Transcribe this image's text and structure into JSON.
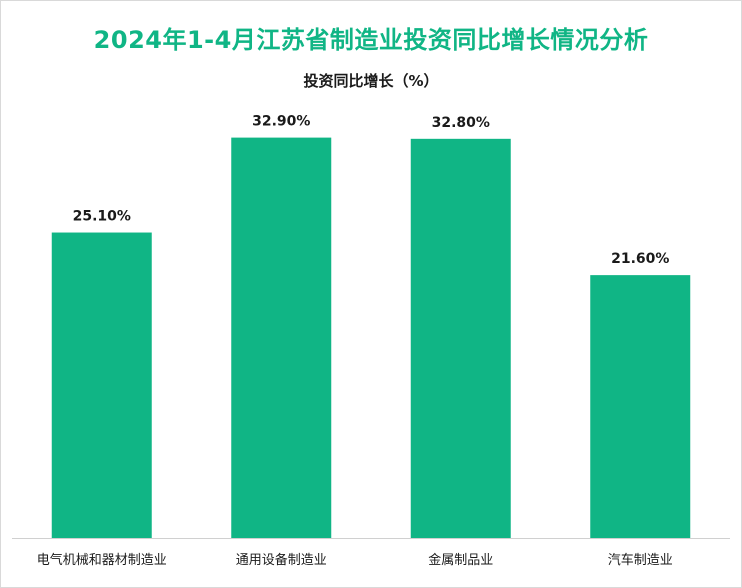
{
  "chart_data": {
    "type": "bar",
    "title": "2024年1-4月江苏省制造业投资同比增长情况分析",
    "series_title": "投资同比增长（%）",
    "categories": [
      "电气机械和器材制造业",
      "通用设备制造业",
      "金属制品业",
      "汽车制造业"
    ],
    "series": [
      {
        "name": "投资同比增长（%）",
        "values": [
          25.1,
          32.9,
          32.8,
          21.6
        ],
        "labels": [
          "25.10%",
          "32.90%",
          "32.80%",
          "21.60%"
        ]
      }
    ],
    "ylim": [
      0,
      35
    ],
    "grid": false,
    "legend": "none",
    "bar_color": "#10b585",
    "title_color": "#10b585"
  }
}
